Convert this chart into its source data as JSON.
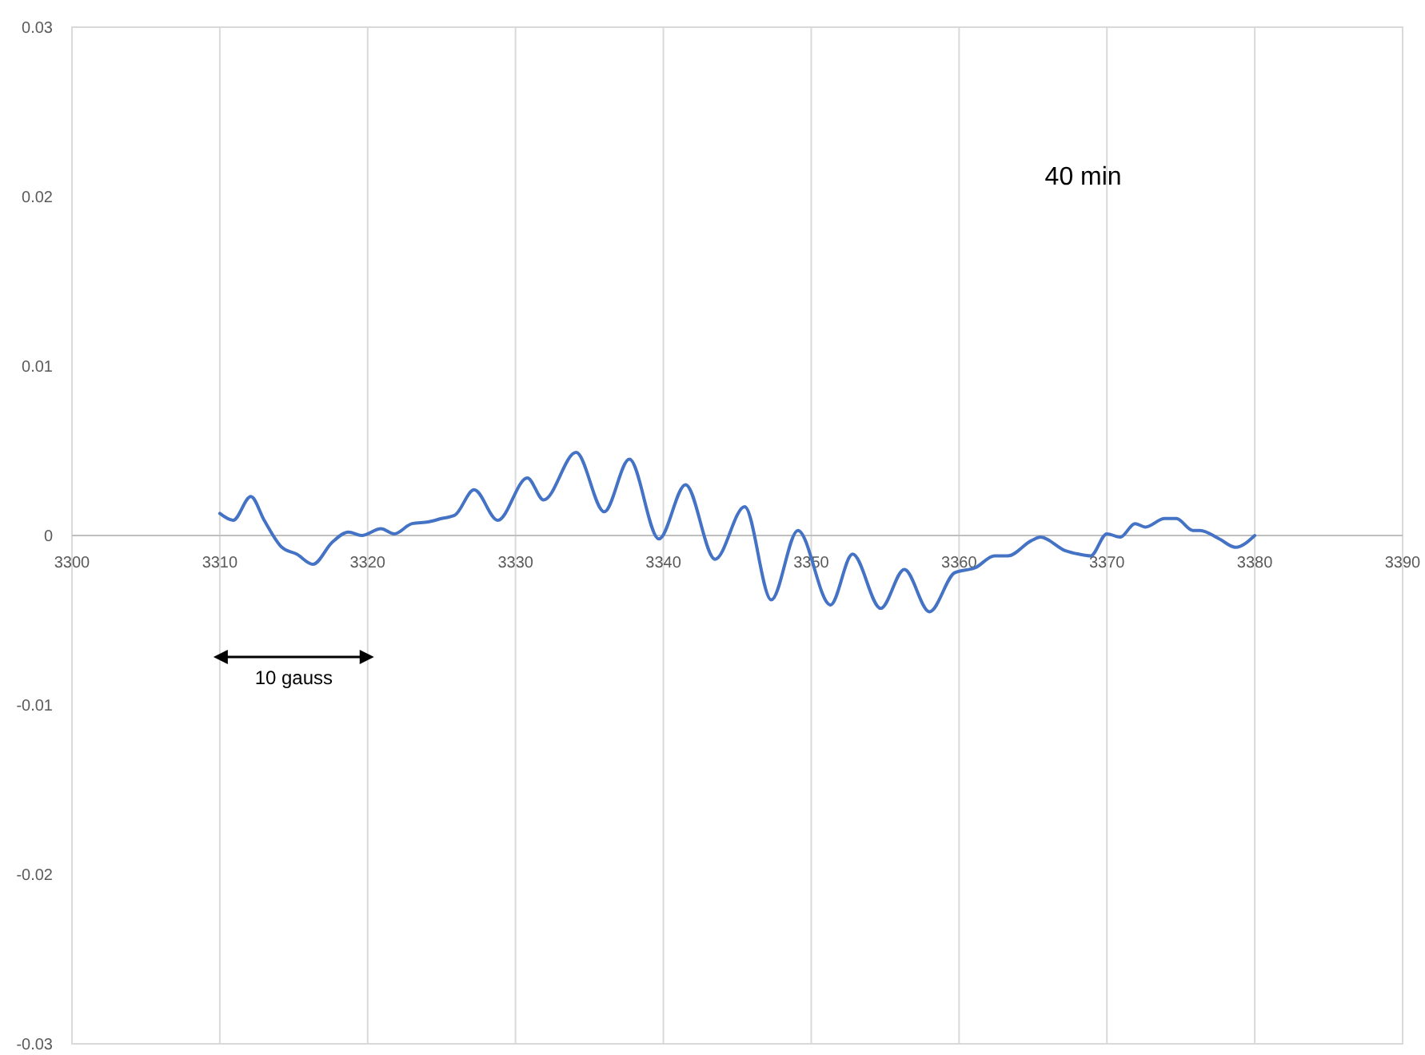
{
  "chart_data": {
    "type": "line",
    "annotations": [
      "40 min",
      "10 gauss"
    ],
    "x": [
      3310,
      3310.9,
      3312.1,
      3313,
      3314.2,
      3315.2,
      3316.3,
      3317.6,
      3318.7,
      3319.6,
      3320.9,
      3321.8,
      3323,
      3324.1,
      3325,
      3325.9,
      3327.2,
      3328.8,
      3330.8,
      3331.9,
      3334.1,
      3336,
      3337.7,
      3339.7,
      3341.5,
      3343.5,
      3345.5,
      3347.3,
      3349.1,
      3351.3,
      3352.8,
      3354.7,
      3356.3,
      3358,
      3359.7,
      3361.1,
      3362.4,
      3363.3,
      3364.9,
      3365.5,
      3367.2,
      3368.1,
      3368.9,
      3370,
      3370.9,
      3371.9,
      3372.6,
      3373.9,
      3374.7,
      3375.8,
      3376.3,
      3377.6,
      3378.7,
      3380
    ],
    "series": [
      {
        "color": "#4472c4",
        "values": [
          0.0013,
          0.0009,
          0.0023,
          0.0009,
          -0.0007,
          -0.0011,
          -0.0017,
          -0.0004,
          0.0002,
          0,
          0.0004,
          0.0001,
          0.0007,
          0.0008,
          0.001,
          0.0012,
          0.0027,
          0.0009,
          0.0034,
          0.0021,
          0.0049,
          0.0014,
          0.0045,
          -0.0002,
          0.003,
          -0.0014,
          0.0017,
          -0.0038,
          0.0003,
          -0.0041,
          -0.0011,
          -0.0043,
          -0.002,
          -0.0045,
          -0.0022,
          -0.0019,
          -0.0012,
          -0.0012,
          -0.0003,
          -0.0001,
          -0.0009,
          -0.0011,
          -0.0012,
          0.0001,
          -0.0001,
          0.0007,
          0.0005,
          0.001,
          0.001,
          0.0003,
          0.0003,
          -0.0002,
          -0.0007,
          0
        ]
      }
    ],
    "xlim": [
      3300,
      3390
    ],
    "xticks": [
      3300,
      3310,
      3320,
      3330,
      3340,
      3350,
      3360,
      3370,
      3380,
      3390
    ],
    "ylim": [
      -0.03,
      0.03
    ],
    "yticks": [
      -0.03,
      -0.02,
      -0.01,
      0,
      0.01,
      0.02,
      0.03
    ],
    "grid": "x",
    "marker": "none",
    "line_style": "solid"
  }
}
